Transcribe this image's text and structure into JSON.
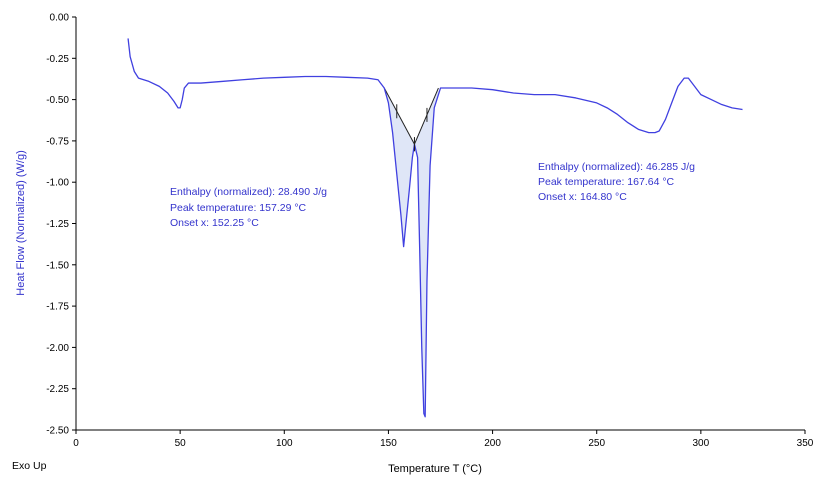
{
  "chart_data": {
    "type": "line",
    "xlabel": "Temperature  T  (°C)",
    "ylabel": "Heat Flow (Normalized)  (W/g)",
    "xlim": [
      0,
      350
    ],
    "ylim": [
      -2.5,
      0.0
    ],
    "x_ticks": [
      "0",
      "50",
      "100",
      "150",
      "200",
      "250",
      "300",
      "350"
    ],
    "y_ticks": [
      "0.00",
      "-0.25",
      "-0.50",
      "-0.75",
      "-1.00",
      "-1.25",
      "-1.50",
      "-1.75",
      "-2.00",
      "-2.25",
      "-2.50"
    ],
    "grid": false,
    "corner_label": "Exo Up",
    "series": [
      {
        "color": "#4040e0",
        "x": [
          25,
          26,
          28,
          30,
          35,
          40,
          44,
          47,
          49,
          50,
          51,
          52,
          54,
          56,
          60,
          70,
          80,
          90,
          100,
          110,
          115,
          120,
          130,
          140,
          145,
          148,
          150,
          152,
          154,
          156,
          157.29,
          158,
          160,
          161.5,
          162.5,
          164,
          165,
          166,
          167,
          167.64,
          168.5,
          170,
          172,
          175,
          180,
          190,
          200,
          210,
          220,
          230,
          240,
          250,
          255,
          260,
          265,
          270,
          275,
          278,
          280,
          283,
          286,
          289,
          292,
          294,
          297,
          300,
          305,
          310,
          315,
          320
        ],
        "y": [
          -0.13,
          -0.24,
          -0.33,
          -0.37,
          -0.39,
          -0.42,
          -0.46,
          -0.51,
          -0.55,
          -0.55,
          -0.5,
          -0.43,
          -0.4,
          -0.4,
          -0.4,
          -0.39,
          -0.38,
          -0.37,
          -0.365,
          -0.36,
          -0.36,
          -0.36,
          -0.365,
          -0.37,
          -0.38,
          -0.43,
          -0.52,
          -0.7,
          -0.95,
          -1.2,
          -1.39,
          -1.3,
          -1.05,
          -0.85,
          -0.77,
          -0.85,
          -1.4,
          -2.0,
          -2.4,
          -2.42,
          -1.6,
          -0.9,
          -0.55,
          -0.43,
          -0.43,
          -0.43,
          -0.44,
          -0.46,
          -0.47,
          -0.47,
          -0.49,
          -0.52,
          -0.55,
          -0.59,
          -0.64,
          -0.68,
          -0.7,
          -0.7,
          -0.69,
          -0.62,
          -0.52,
          -0.42,
          -0.37,
          -0.37,
          -0.42,
          -0.47,
          -0.5,
          -0.53,
          -0.55,
          -0.56
        ]
      }
    ],
    "annotations": [
      {
        "lines": [
          "Enthalpy (normalized): 28.490 J/g",
          "Peak temperature: 157.29 °C",
          "Onset x: 152.25 °C"
        ]
      },
      {
        "lines": [
          "Enthalpy (normalized): 46.285 J/g",
          "Peak temperature: 167.64 °C",
          "Onset x: 164.80 °C"
        ]
      }
    ],
    "peaks": [
      {
        "baseline_x": [
          148,
          162.5
        ],
        "baseline_y": [
          -0.43,
          -0.77
        ],
        "marks_x": [
          154,
          162.5
        ]
      },
      {
        "baseline_x": [
          162.5,
          174
        ],
        "baseline_y": [
          -0.77,
          -0.43
        ],
        "marks_x": [
          162.5,
          168.5
        ]
      }
    ]
  }
}
